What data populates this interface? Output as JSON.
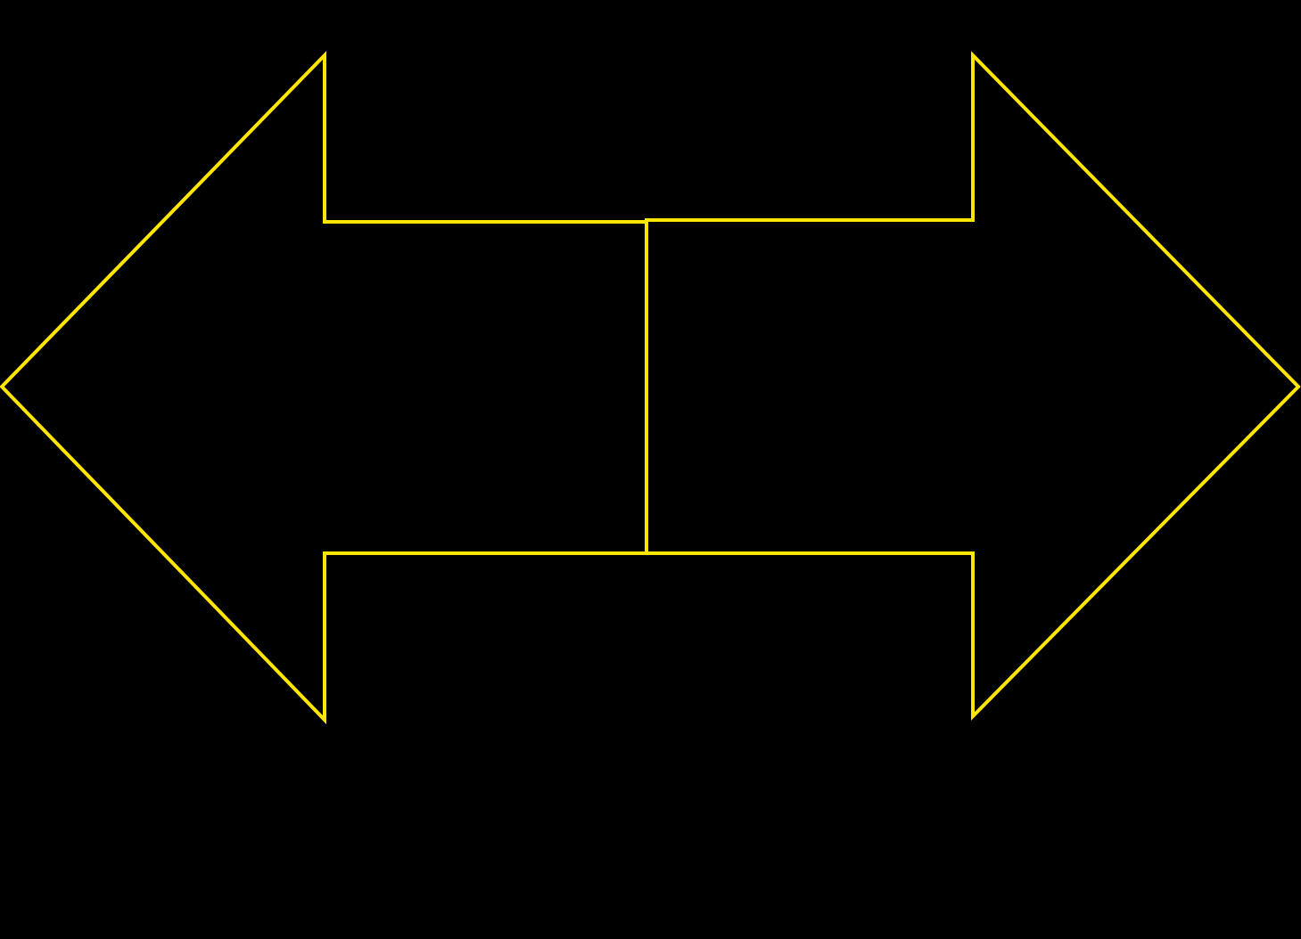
{
  "diagram": {
    "shape": "double-headed arrow outline split into two arrows",
    "stroke_color": "#FFE600",
    "background_color": "#000000",
    "parts": [
      {
        "name": "left-arrow",
        "direction": "left"
      },
      {
        "name": "right-arrow",
        "direction": "right"
      }
    ]
  }
}
